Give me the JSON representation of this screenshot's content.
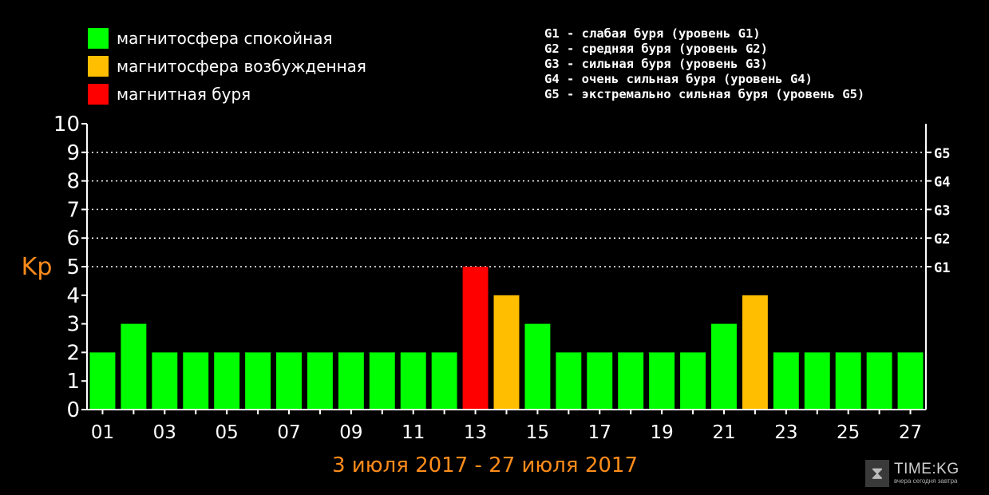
{
  "legend": {
    "items": [
      {
        "label": "магнитосфера спокойная",
        "color": "#00ff00"
      },
      {
        "label": "магнитосфера возбужденная",
        "color": "#ffbf00"
      },
      {
        "label": "магнитная буря",
        "color": "#ff0000"
      }
    ],
    "levels": [
      "G1 - слабая буря (уровень G1)",
      "G2 - средняя буря (уровень G2)",
      "G3 - сильная буря (уровень G3)",
      "G4 - очень сильная буря (уровень G4)",
      "G5 - экстремально сильная буря (уровень G5)"
    ]
  },
  "watermark": {
    "title": "TIME:KG",
    "subtitle": "вчера сегодня завтра",
    "icon": "hourglass-icon"
  },
  "chart_data": {
    "type": "bar",
    "ylabel": "Kp",
    "xlabel": "3 июля 2017 - 27 июля 2017",
    "ylim": [
      0,
      10
    ],
    "y_ticks": [
      "0",
      "1",
      "2",
      "3",
      "4",
      "5",
      "6",
      "7",
      "8",
      "9",
      "10"
    ],
    "right_ticks": [
      {
        "label": "G1",
        "value": 5
      },
      {
        "label": "G2",
        "value": 6
      },
      {
        "label": "G3",
        "value": 7
      },
      {
        "label": "G4",
        "value": 8
      },
      {
        "label": "G5",
        "value": 9
      }
    ],
    "x_tick_labels": [
      "01",
      "03",
      "05",
      "07",
      "09",
      "11",
      "13",
      "15",
      "17",
      "19",
      "21",
      "23",
      "25",
      "27"
    ],
    "categories": [
      "01",
      "02",
      "03",
      "04",
      "05",
      "06",
      "07",
      "08",
      "09",
      "10",
      "11",
      "12",
      "13",
      "14",
      "15",
      "16",
      "17",
      "18",
      "19",
      "20",
      "21",
      "22",
      "23",
      "24",
      "25",
      "26",
      "27"
    ],
    "values": [
      2,
      3,
      2,
      2,
      2,
      2,
      2,
      2,
      2,
      2,
      2,
      2,
      5,
      4,
      3,
      2,
      2,
      2,
      2,
      2,
      3,
      4,
      2,
      2,
      2,
      2,
      2
    ],
    "grid": "dotted at 5-9",
    "colors": {
      "calm": "#00ff00",
      "excited": "#ffbf00",
      "storm": "#ff0000",
      "axis": "#ffffff",
      "label": "#ff8c1a"
    }
  }
}
